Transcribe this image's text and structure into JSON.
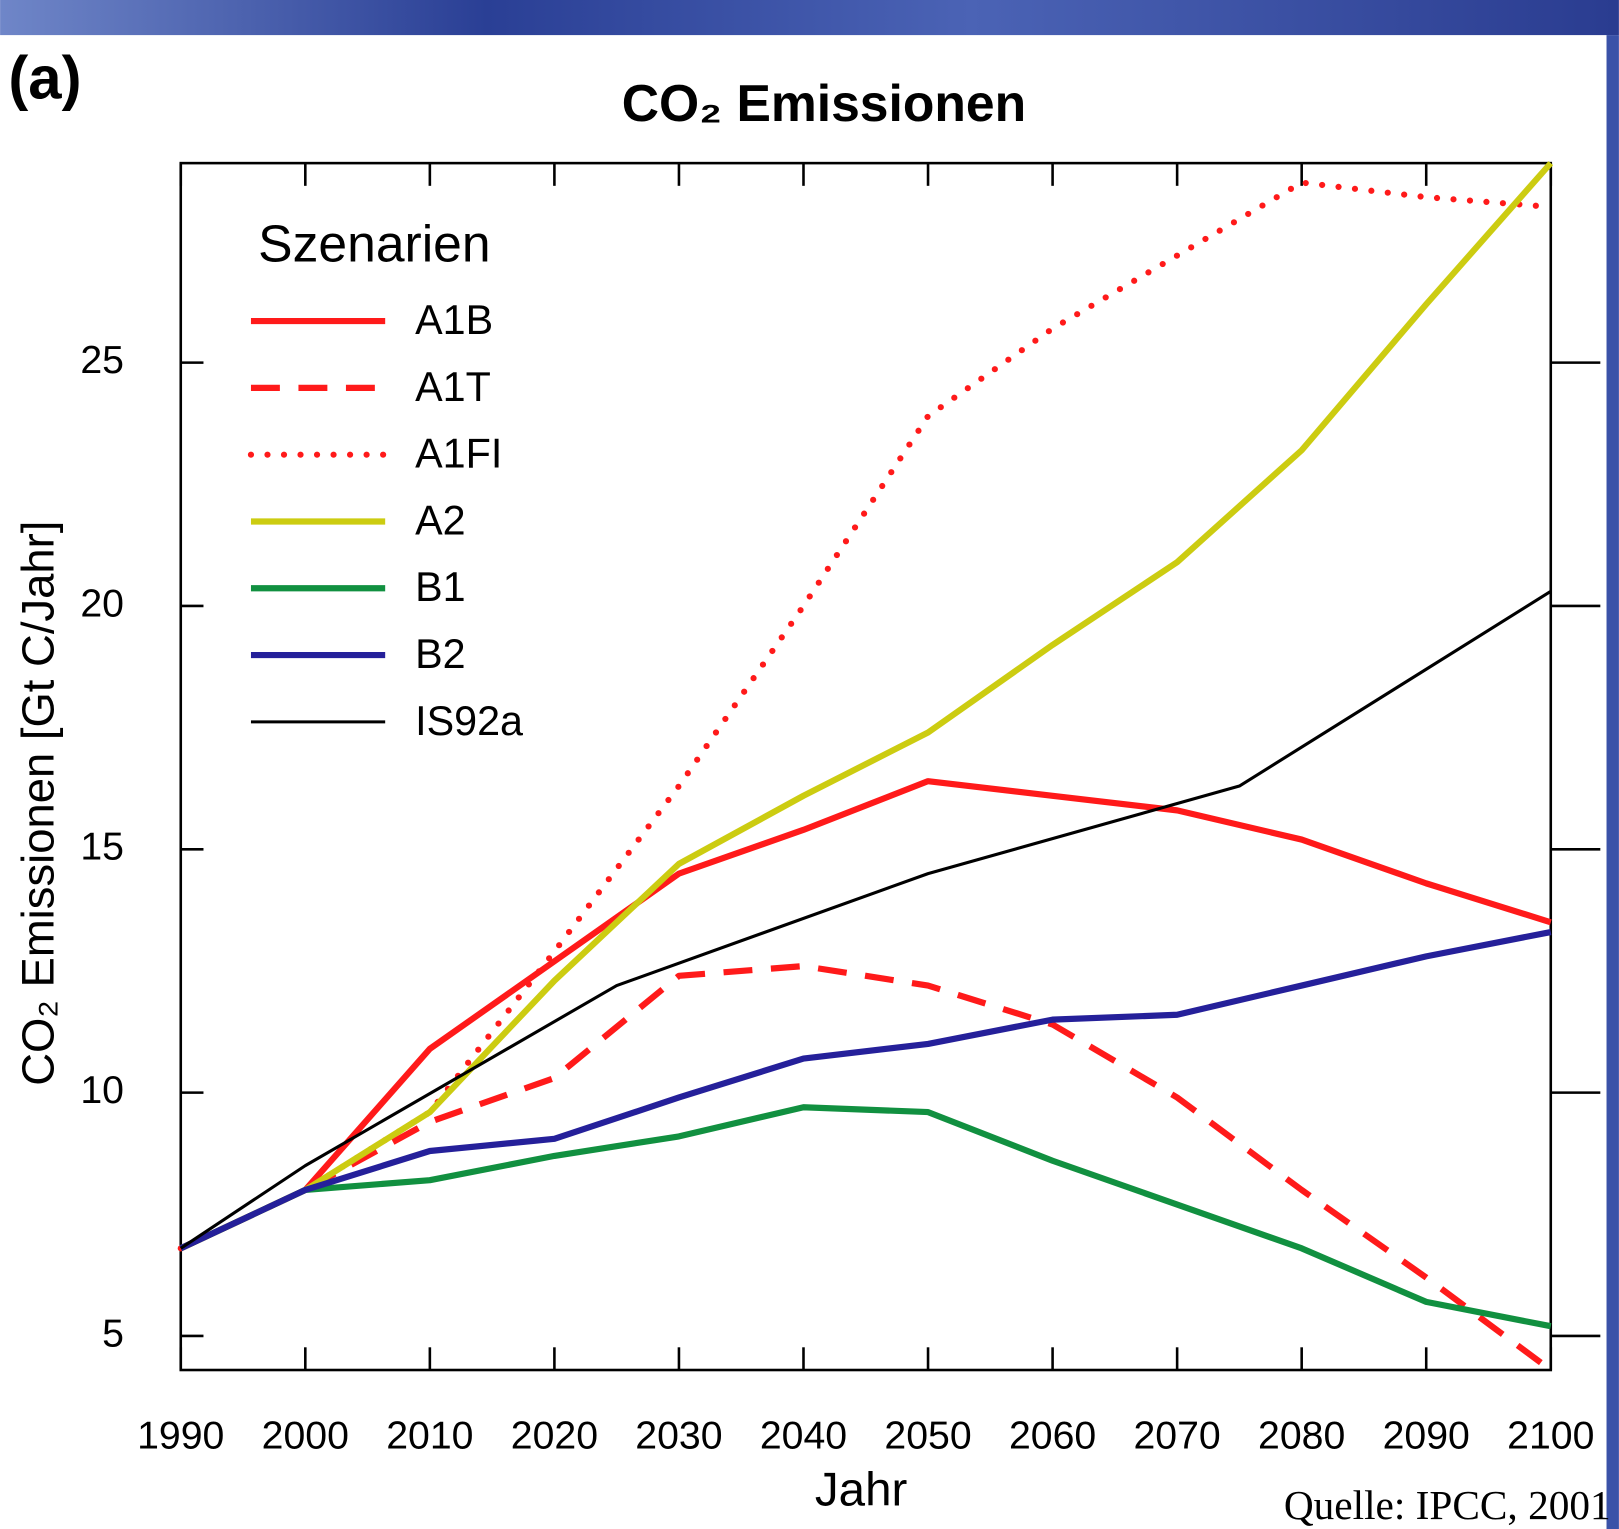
{
  "chart_data": {
    "type": "line",
    "panel_label": "(a)",
    "title": "CO₂ Emissionen",
    "x_label": "Jahr",
    "y_label": "CO₂ Emissionen [Gt C/Jahr]",
    "legend_title": "Szenarien",
    "legend": "upper left",
    "source": "Quelle: IPCC, 2001",
    "x": [
      1990,
      2000,
      2010,
      2020,
      2030,
      2040,
      2050,
      2060,
      2070,
      2080,
      2090,
      2100
    ],
    "xlim": [
      1990,
      2100
    ],
    "xticks": [
      1990,
      2000,
      2010,
      2020,
      2030,
      2040,
      2050,
      2060,
      2070,
      2080,
      2090,
      2100
    ],
    "ylim": [
      4.3,
      29.1
    ],
    "yticks": [
      5,
      10,
      15,
      20,
      25
    ],
    "series": [
      {
        "name": "A1B",
        "color": "#ff1a1a",
        "style": "solid",
        "values": [
          6.8,
          8.0,
          10.9,
          12.7,
          14.5,
          15.4,
          16.4,
          16.1,
          15.8,
          15.2,
          14.3,
          13.5
        ]
      },
      {
        "name": "A1T",
        "color": "#ff1a1a",
        "style": "dashed",
        "values": [
          6.8,
          8.0,
          9.4,
          10.3,
          12.4,
          12.6,
          12.2,
          11.4,
          9.9,
          8.0,
          6.2,
          4.3
        ]
      },
      {
        "name": "A1FI",
        "color": "#ff1a1a",
        "style": "dotted",
        "values": [
          6.8,
          8.0,
          9.6,
          12.9,
          16.3,
          20.0,
          23.9,
          25.7,
          27.2,
          28.7,
          28.4,
          28.2
        ]
      },
      {
        "name": "A2",
        "color": "#cccc11",
        "style": "solid",
        "values": [
          6.8,
          8.0,
          9.6,
          12.3,
          14.7,
          16.1,
          17.4,
          19.2,
          20.9,
          23.2,
          26.2,
          29.1
        ]
      },
      {
        "name": "B1",
        "color": "#119040",
        "style": "solid",
        "values": [
          6.8,
          8.0,
          8.2,
          8.7,
          9.1,
          9.7,
          9.6,
          8.6,
          7.7,
          6.8,
          5.7,
          5.2
        ]
      },
      {
        "name": "B2",
        "color": "#25209a",
        "style": "solid",
        "values": [
          6.8,
          8.0,
          8.8,
          9.05,
          9.9,
          10.7,
          11.0,
          11.5,
          11.6,
          12.2,
          12.8,
          13.3
        ]
      },
      {
        "name": "IS92a",
        "color": "#000000",
        "style": "thin",
        "x": [
          1990,
          2000,
          2025,
          2050,
          2075,
          2100
        ],
        "values": [
          6.8,
          8.5,
          12.2,
          14.5,
          16.3,
          20.3
        ]
      }
    ]
  }
}
